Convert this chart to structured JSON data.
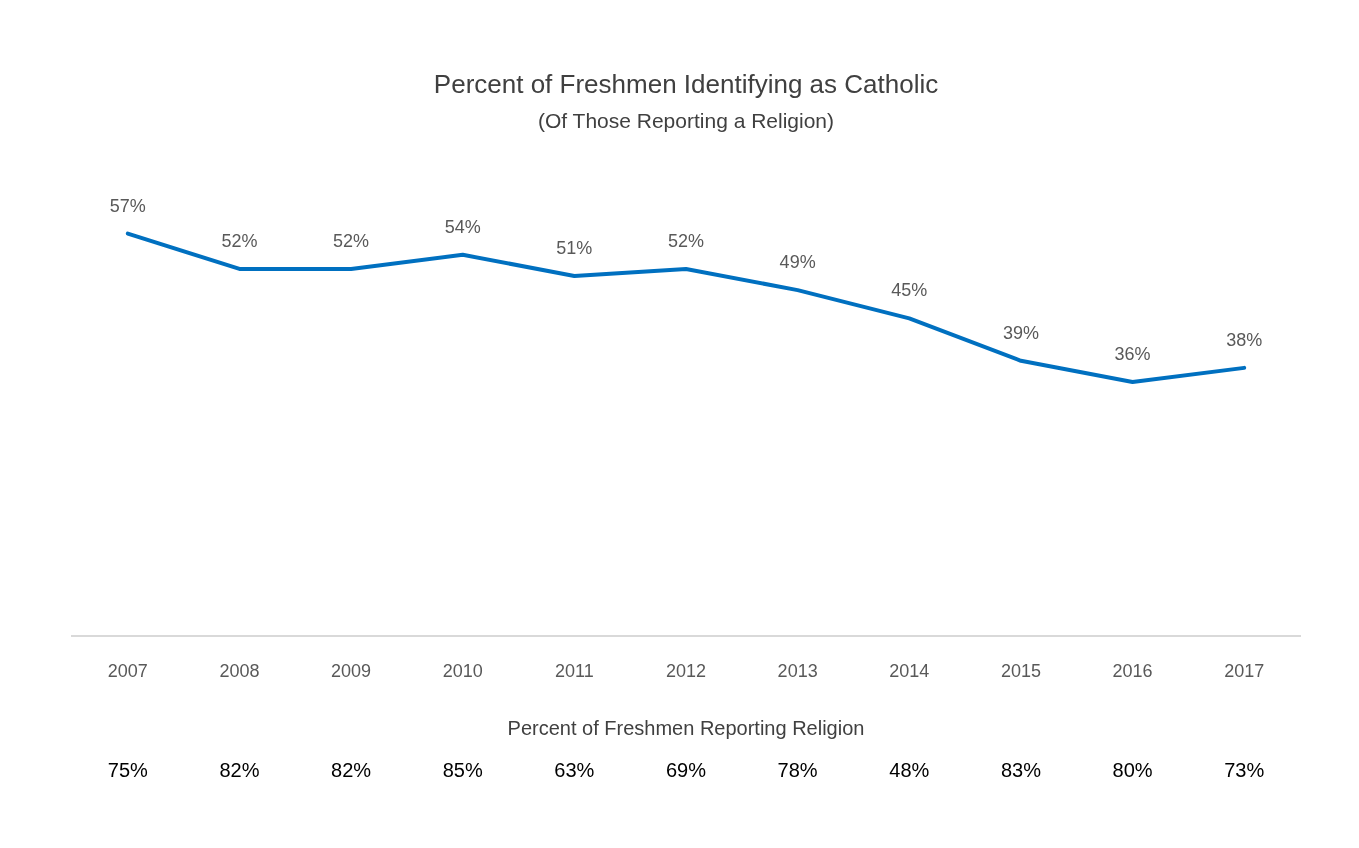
{
  "chart_data": {
    "type": "line",
    "title": "Percent of Freshmen Identifying as Catholic",
    "subtitle": "(Of Those Reporting a Religion)",
    "categories": [
      "2007",
      "2008",
      "2009",
      "2010",
      "2011",
      "2012",
      "2013",
      "2014",
      "2015",
      "2016",
      "2017"
    ],
    "series": [
      {
        "color": "#0070c0",
        "values": [
          57,
          52,
          52,
          54,
          51,
          52,
          49,
          45,
          39,
          36,
          38
        ],
        "value_labels": [
          "57%",
          "52%",
          "52%",
          "54%",
          "51%",
          "52%",
          "49%",
          "45%",
          "39%",
          "36%",
          "38%"
        ]
      }
    ],
    "tick_labels": "x",
    "grid": false,
    "legend": false,
    "marker": "none",
    "line_style": "solid",
    "annotations": [
      "Percent of Freshmen Reporting Religion",
      "75%",
      "82%",
      "82%",
      "85%",
      "63%",
      "69%",
      "78%",
      "48%",
      "83%",
      "80%",
      "73%"
    ]
  }
}
